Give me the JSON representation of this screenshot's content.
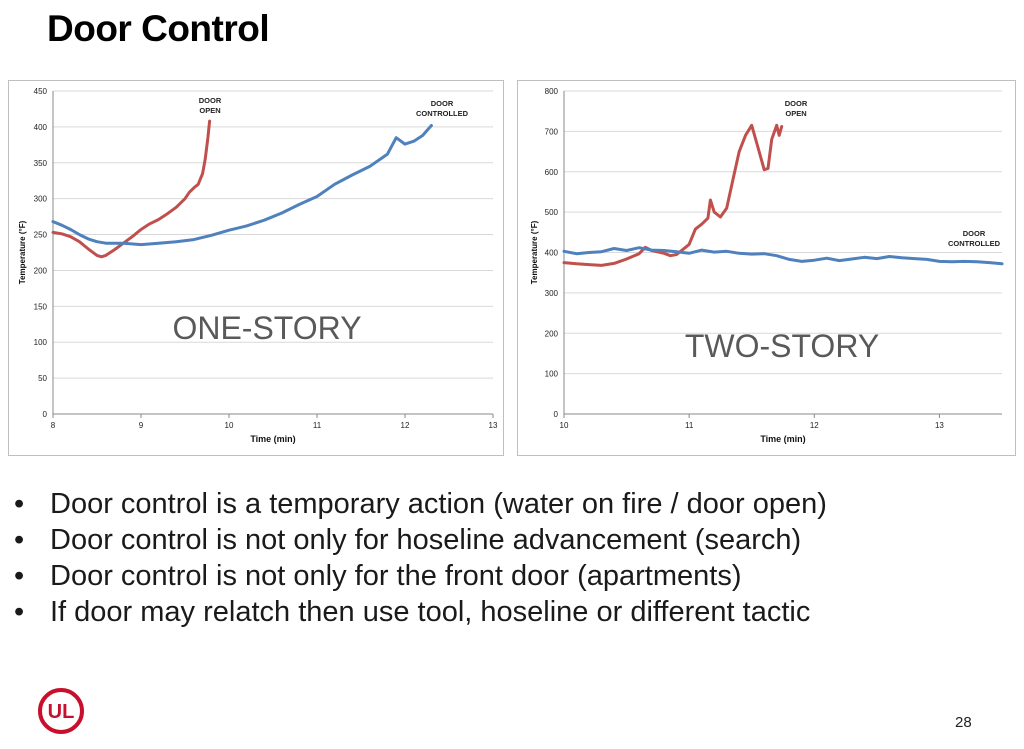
{
  "slide": {
    "title": "Door Control",
    "page_number": "28",
    "logo_text": "UL"
  },
  "bullets": [
    "Door control is a temporary action (water on fire / door open)",
    "Door control is not only for hoseline advancement (search)",
    "Door control is not only for the front door (apartments)",
    "If door may relatch then use tool, hoseline or different tactic"
  ],
  "chart_data": [
    {
      "type": "line",
      "label": "ONE-STORY",
      "xlabel": "Time (min)",
      "ylabel": "Temperature (°F)",
      "xlim": [
        8,
        13
      ],
      "ylim": [
        0,
        450
      ],
      "xticks": [
        8,
        9,
        10,
        11,
        12,
        13
      ],
      "yticks": [
        0,
        50,
        100,
        150,
        200,
        250,
        300,
        350,
        400,
        450
      ],
      "grid": true,
      "series": [
        {
          "name": "DOOR OPEN",
          "color": "#c0504d",
          "points": [
            [
              8.0,
              253
            ],
            [
              8.1,
              251
            ],
            [
              8.2,
              247
            ],
            [
              8.3,
              240
            ],
            [
              8.4,
              230
            ],
            [
              8.5,
              221
            ],
            [
              8.55,
              219
            ],
            [
              8.6,
              221
            ],
            [
              8.7,
              229
            ],
            [
              8.8,
              238
            ],
            [
              8.9,
              247
            ],
            [
              9.0,
              257
            ],
            [
              9.1,
              265
            ],
            [
              9.2,
              271
            ],
            [
              9.3,
              279
            ],
            [
              9.4,
              288
            ],
            [
              9.5,
              300
            ],
            [
              9.55,
              309
            ],
            [
              9.6,
              315
            ],
            [
              9.65,
              320
            ],
            [
              9.7,
              335
            ],
            [
              9.73,
              355
            ],
            [
              9.76,
              385
            ],
            [
              9.78,
              408
            ]
          ]
        },
        {
          "name": "DOOR CONTROLLED",
          "color": "#4f81bd",
          "points": [
            [
              8.0,
              268
            ],
            [
              8.1,
              263
            ],
            [
              8.2,
              257
            ],
            [
              8.3,
              250
            ],
            [
              8.4,
              244
            ],
            [
              8.5,
              240
            ],
            [
              8.6,
              238
            ],
            [
              8.8,
              238
            ],
            [
              9.0,
              236
            ],
            [
              9.2,
              238
            ],
            [
              9.4,
              240
            ],
            [
              9.6,
              243
            ],
            [
              9.8,
              249
            ],
            [
              10.0,
              256
            ],
            [
              10.2,
              262
            ],
            [
              10.4,
              270
            ],
            [
              10.6,
              280
            ],
            [
              10.8,
              292
            ],
            [
              11.0,
              303
            ],
            [
              11.2,
              320
            ],
            [
              11.4,
              333
            ],
            [
              11.6,
              345
            ],
            [
              11.8,
              362
            ],
            [
              11.9,
              385
            ],
            [
              12.0,
              376
            ],
            [
              12.1,
              380
            ],
            [
              12.2,
              388
            ],
            [
              12.3,
              402
            ]
          ]
        }
      ],
      "annotations": [
        "DOOR OPEN",
        "DOOR CONTROLLED"
      ]
    },
    {
      "type": "line",
      "label": "TWO-STORY",
      "xlabel": "Time (min)",
      "ylabel": "Temperature (°F)",
      "xlim": [
        10,
        13.5
      ],
      "ylim": [
        0,
        800
      ],
      "xticks": [
        10,
        11,
        12,
        13
      ],
      "yticks": [
        0,
        100,
        200,
        300,
        400,
        500,
        600,
        700,
        800
      ],
      "grid": true,
      "series": [
        {
          "name": "DOOR OPEN",
          "color": "#c0504d",
          "points": [
            [
              10.0,
              375
            ],
            [
              10.1,
              372
            ],
            [
              10.2,
              370
            ],
            [
              10.3,
              368
            ],
            [
              10.4,
              373
            ],
            [
              10.5,
              384
            ],
            [
              10.6,
              397
            ],
            [
              10.65,
              413
            ],
            [
              10.7,
              405
            ],
            [
              10.8,
              398
            ],
            [
              10.85,
              392
            ],
            [
              10.9,
              395
            ],
            [
              11.0,
              420
            ],
            [
              11.05,
              458
            ],
            [
              11.1,
              470
            ],
            [
              11.15,
              485
            ],
            [
              11.17,
              530
            ],
            [
              11.2,
              500
            ],
            [
              11.25,
              488
            ],
            [
              11.3,
              510
            ],
            [
              11.35,
              580
            ],
            [
              11.4,
              650
            ],
            [
              11.45,
              690
            ],
            [
              11.5,
              715
            ],
            [
              11.55,
              660
            ],
            [
              11.6,
              605
            ],
            [
              11.63,
              608
            ],
            [
              11.66,
              680
            ],
            [
              11.7,
              715
            ],
            [
              11.72,
              690
            ],
            [
              11.74,
              712
            ]
          ]
        },
        {
          "name": "DOOR CONTROLLED",
          "color": "#4f81bd",
          "points": [
            [
              10.0,
              403
            ],
            [
              10.1,
              397
            ],
            [
              10.2,
              400
            ],
            [
              10.3,
              402
            ],
            [
              10.4,
              410
            ],
            [
              10.5,
              405
            ],
            [
              10.6,
              412
            ],
            [
              10.7,
              406
            ],
            [
              10.8,
              405
            ],
            [
              10.9,
              402
            ],
            [
              11.0,
              398
            ],
            [
              11.1,
              406
            ],
            [
              11.2,
              401
            ],
            [
              11.3,
              403
            ],
            [
              11.4,
              398
            ],
            [
              11.5,
              396
            ],
            [
              11.6,
              397
            ],
            [
              11.7,
              392
            ],
            [
              11.8,
              383
            ],
            [
              11.9,
              378
            ],
            [
              12.0,
              381
            ],
            [
              12.1,
              386
            ],
            [
              12.2,
              380
            ],
            [
              12.3,
              384
            ],
            [
              12.4,
              388
            ],
            [
              12.5,
              385
            ],
            [
              12.6,
              390
            ],
            [
              12.7,
              387
            ],
            [
              12.8,
              385
            ],
            [
              12.9,
              383
            ],
            [
              13.0,
              378
            ],
            [
              13.1,
              377
            ],
            [
              13.2,
              378
            ],
            [
              13.3,
              377
            ],
            [
              13.4,
              375
            ],
            [
              13.5,
              372
            ]
          ]
        }
      ],
      "annotations": [
        "DOOR OPEN",
        "DOOR CONTROLLED"
      ]
    }
  ]
}
